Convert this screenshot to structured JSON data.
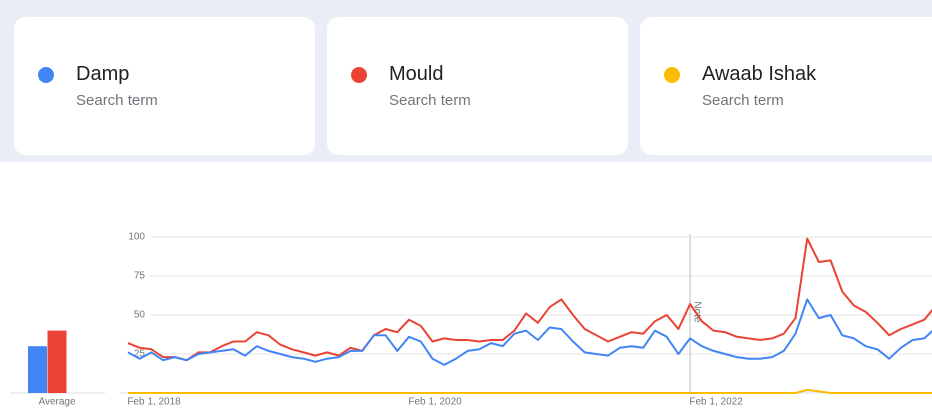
{
  "term_caption": "Search term",
  "chart_data": [
    {
      "type": "bar",
      "categories": [
        "Average"
      ],
      "ylim": [
        0,
        100
      ],
      "series": [
        {
          "color": "#4285f4",
          "values": [
            30
          ]
        },
        {
          "color": "#ea4335",
          "values": [
            40
          ]
        },
        {
          "color": "#fbbc04",
          "values": [
            0
          ]
        }
      ]
    },
    {
      "type": "line",
      "ylim": [
        0,
        100
      ],
      "yticks": [
        25,
        50,
        75,
        100
      ],
      "grid": true,
      "annotation": "Note",
      "categories": [
        "Feb 1, 2018",
        null,
        null,
        null,
        null,
        null,
        null,
        null,
        null,
        null,
        null,
        null,
        null,
        null,
        null,
        null,
        null,
        null,
        null,
        null,
        null,
        null,
        null,
        null,
        "Feb 1, 2020",
        null,
        null,
        null,
        null,
        null,
        null,
        null,
        null,
        null,
        null,
        null,
        null,
        null,
        null,
        null,
        null,
        null,
        null,
        null,
        null,
        null,
        null,
        null,
        "Feb 1, 2022",
        null,
        null,
        null,
        null,
        null,
        null,
        null,
        null,
        null,
        null,
        null,
        null,
        null,
        null,
        null,
        null,
        null,
        null,
        null,
        null,
        null
      ],
      "series": [
        {
          "name": "Damp",
          "color": "#4285f4",
          "values": [
            26,
            22,
            26,
            21,
            23,
            21,
            25,
            26,
            27,
            28,
            24,
            30,
            27,
            25,
            23,
            22,
            20,
            22,
            23,
            27,
            27,
            37,
            37,
            27,
            36,
            33,
            22,
            18,
            22,
            27,
            28,
            32,
            30,
            38,
            40,
            34,
            42,
            41,
            33,
            26,
            25,
            24,
            29,
            30,
            29,
            40,
            36,
            25,
            35,
            30,
            27,
            25,
            23,
            22,
            22,
            23,
            27,
            38,
            60,
            48,
            50,
            37,
            35,
            30,
            28,
            22,
            29,
            34,
            35,
            42
          ]
        },
        {
          "name": "Mould",
          "color": "#ea4335",
          "values": [
            32,
            29,
            28,
            23,
            23,
            21,
            26,
            26,
            30,
            33,
            33,
            39,
            37,
            31,
            28,
            26,
            24,
            26,
            24,
            29,
            27,
            37,
            41,
            39,
            47,
            43,
            33,
            35,
            34,
            34,
            33,
            34,
            34,
            40,
            51,
            45,
            55,
            60,
            50,
            41,
            37,
            33,
            36,
            39,
            38,
            46,
            50,
            41,
            57,
            46,
            40,
            39,
            36,
            35,
            34,
            35,
            38,
            48,
            99,
            84,
            85,
            65,
            56,
            52,
            45,
            37,
            41,
            44,
            47,
            56
          ]
        },
        {
          "name": "Awaab Ishak",
          "color": "#fbbc04",
          "values": [
            0,
            0,
            0,
            0,
            0,
            0,
            0,
            0,
            0,
            0,
            0,
            0,
            0,
            0,
            0,
            0,
            0,
            0,
            0,
            0,
            0,
            0,
            0,
            0,
            0,
            0,
            0,
            0,
            0,
            0,
            0,
            0,
            0,
            0,
            0,
            0,
            0,
            0,
            0,
            0,
            0,
            0,
            0,
            0,
            0,
            0,
            0,
            0,
            0,
            0,
            0,
            0,
            0,
            0,
            0,
            0,
            0,
            0,
            2,
            1,
            0,
            0,
            0,
            0,
            0,
            0,
            0,
            0,
            0,
            0
          ]
        }
      ]
    }
  ]
}
